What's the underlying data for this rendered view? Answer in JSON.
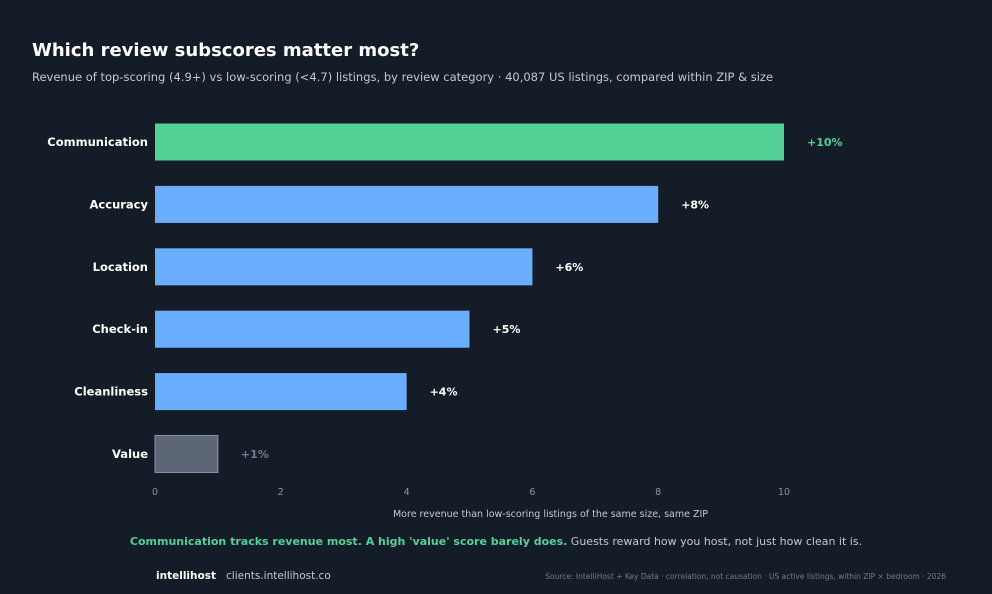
{
  "header": {
    "title": "Which review subscores matter most?",
    "subtitle": "Revenue of top-scoring (4.9+) vs low-scoring (<4.7) listings, by review category · 40,087 US listings, compared within ZIP & size"
  },
  "chart_data": {
    "type": "bar",
    "orientation": "horizontal",
    "title": "Which review subscores matter most?",
    "xlabel": "More revenue than low-scoring listings of the same size, same ZIP",
    "ylabel": "",
    "xlim": [
      0,
      10
    ],
    "xticks": [
      0,
      2,
      4,
      6,
      8,
      10
    ],
    "grid": false,
    "categories": [
      "Communication",
      "Accuracy",
      "Location",
      "Check-in",
      "Cleanliness",
      "Value"
    ],
    "values": [
      10,
      8,
      6,
      5,
      4,
      1
    ],
    "value_labels": [
      "+10%",
      "+8%",
      "+6%",
      "+5%",
      "+4%",
      "+1%"
    ],
    "bar_colors": [
      "#53d197",
      "#6aaeff",
      "#6aaeff",
      "#6aaeff",
      "#6aaeff",
      "#5c6677"
    ],
    "label_colors": [
      "#53d197",
      "#ffffff",
      "#ffffff",
      "#ffffff",
      "#ffffff",
      "#737c8a"
    ]
  },
  "footer": {
    "highlight": "Communication tracks revenue most. A high 'value' score barely does.",
    "note": " Guests reward how you host, not just how clean it is.",
    "brand": "intellihost",
    "site": "clients.intellihost.co",
    "source": "Source: IntelliHost + Key Data · correlation, not causation · US active listings, within ZIP × bedroom · 2026"
  },
  "colors": {
    "background": "#141c28",
    "accent_green": "#53d197",
    "bar_blue": "#6aaeff",
    "bar_muted": "#5c6677"
  }
}
